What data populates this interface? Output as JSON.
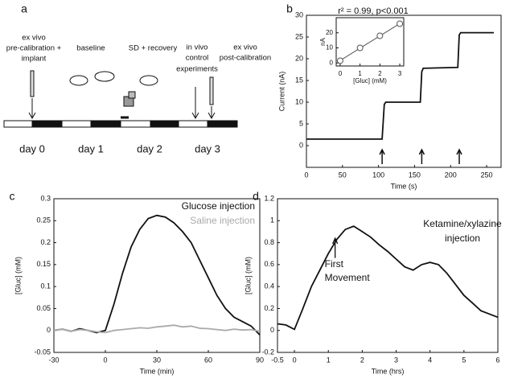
{
  "timeline": {
    "label": "a",
    "events": [
      [
        "ex vivo",
        "pre-calibration +",
        "implant"
      ],
      [
        "baseline"
      ],
      [
        "SD + recovery"
      ],
      [
        "in vivo",
        "control",
        "experiments"
      ],
      [
        "ex vivo",
        "post-calibration"
      ]
    ],
    "days": [
      "day 0",
      "day 1",
      "day 2",
      "day 3"
    ]
  },
  "chart_data": [
    {
      "type": "line",
      "label": "b",
      "xlabel": "Time (s)",
      "ylabel": "Current (nA)",
      "xlim": [
        0,
        270
      ],
      "xticks": [
        0,
        50,
        100,
        150,
        200,
        250
      ],
      "ylim": [
        -5,
        30
      ],
      "yticks": [
        0,
        5,
        10,
        15,
        20,
        25,
        30
      ],
      "series": [
        {
          "color": "#111111",
          "x": [
            0,
            105,
            108,
            110,
            158,
            160,
            162,
            210,
            212,
            214,
            260
          ],
          "values": [
            1.5,
            1.5,
            9.5,
            10,
            10,
            17,
            17.8,
            18,
            25.5,
            26,
            26
          ]
        }
      ],
      "arrows_x": [
        105,
        160,
        212
      ]
    },
    {
      "type": "scatter",
      "annotation": "r² = 0.99, p<0.001",
      "xlabel": "[Gluc] (mM)",
      "ylabel": "nA",
      "xlim": [
        -0.2,
        3.2
      ],
      "xticks": [
        0,
        1,
        2,
        3
      ],
      "ylim": [
        -2,
        30
      ],
      "yticks": [
        0,
        10,
        20
      ],
      "series": [
        {
          "color": "#555555",
          "x": [
            0,
            1,
            2,
            3
          ],
          "values": [
            1.5,
            10,
            18,
            26
          ]
        }
      ],
      "fit": true
    },
    {
      "type": "line",
      "label": "c",
      "xlabel": "Time (min)",
      "ylabel": "[Gluc] (mM)",
      "legend": "upper right",
      "xlim": [
        -30,
        90
      ],
      "xticks": [
        -30,
        0,
        30,
        60,
        90
      ],
      "ylim": [
        -0.05,
        0.3
      ],
      "yticks": [
        -0.05,
        0,
        0.05,
        0.1,
        0.15,
        0.2,
        0.25,
        0.3
      ],
      "series": [
        {
          "name": "Glucose injection",
          "color": "#111111",
          "x": [
            -30,
            -25,
            -20,
            -15,
            -10,
            -5,
            0,
            5,
            10,
            15,
            20,
            25,
            30,
            35,
            40,
            45,
            50,
            55,
            60,
            65,
            70,
            75,
            80,
            85,
            90
          ],
          "values": [
            0,
            0.003,
            -0.002,
            0.004,
            0,
            -0.005,
            0,
            0.06,
            0.13,
            0.19,
            0.23,
            0.255,
            0.262,
            0.258,
            0.245,
            0.225,
            0.2,
            0.16,
            0.12,
            0.08,
            0.05,
            0.03,
            0.02,
            0.01,
            -0.01
          ]
        },
        {
          "name": "Saline injection",
          "color": "#aaaaaa",
          "x": [
            -30,
            -25,
            -20,
            -15,
            -10,
            -5,
            0,
            5,
            10,
            15,
            20,
            25,
            30,
            35,
            40,
            45,
            50,
            55,
            60,
            65,
            70,
            75,
            80,
            85,
            90
          ],
          "values": [
            0,
            0.003,
            -0.002,
            0.002,
            0,
            -0.003,
            -0.005,
            0,
            0.002,
            0.004,
            0.006,
            0.005,
            0.008,
            0.01,
            0.012,
            0.008,
            0.01,
            0.005,
            0.004,
            0.002,
            0,
            0.003,
            0.001,
            0.002,
            -0.002
          ]
        }
      ]
    },
    {
      "type": "line",
      "label": "d",
      "xlabel": "Time (hrs)",
      "ylabel": "[Gluc] (mM)",
      "xlim": [
        -0.5,
        6
      ],
      "xticks": [
        -0.5,
        0,
        1,
        2,
        3,
        4,
        5,
        6
      ],
      "ylim": [
        -0.2,
        1.2
      ],
      "yticks": [
        -0.2,
        0,
        0.2,
        0.4,
        0.6,
        0.8,
        1,
        1.2
      ],
      "annotations": [
        "Ketamine/xylazine",
        "injection"
      ],
      "arrow": {
        "text": [
          "First",
          "Movement"
        ],
        "x": 1.2
      },
      "series": [
        {
          "color": "#111111",
          "x": [
            -0.5,
            -0.25,
            0,
            0.25,
            0.5,
            0.75,
            1,
            1.25,
            1.5,
            1.75,
            2,
            2.25,
            2.5,
            2.75,
            3,
            3.25,
            3.5,
            3.75,
            4,
            4.25,
            4.5,
            4.75,
            5,
            5.25,
            5.5,
            5.75,
            6
          ],
          "values": [
            0.06,
            0.05,
            0.01,
            0.2,
            0.4,
            0.55,
            0.7,
            0.83,
            0.92,
            0.95,
            0.9,
            0.85,
            0.78,
            0.72,
            0.65,
            0.58,
            0.55,
            0.6,
            0.62,
            0.6,
            0.52,
            0.42,
            0.32,
            0.25,
            0.18,
            0.15,
            0.12
          ]
        }
      ]
    }
  ]
}
